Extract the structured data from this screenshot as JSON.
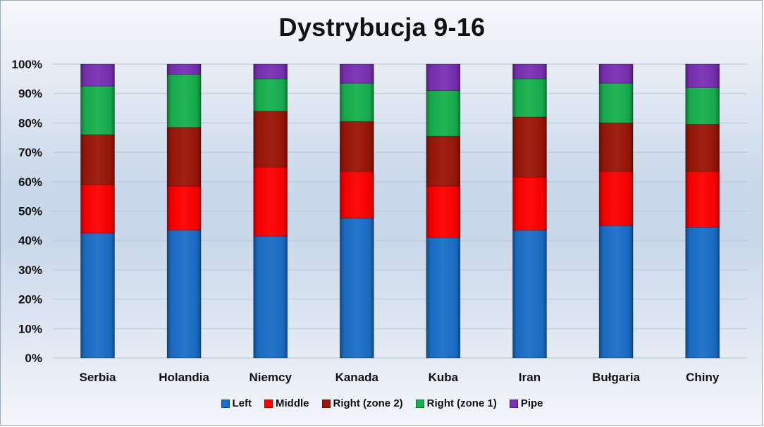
{
  "chart_data": {
    "type": "bar",
    "stacked": true,
    "percent": true,
    "title": "Dystrybucja 9-16",
    "categories": [
      "Serbia",
      "Holandia",
      "Niemcy",
      "Kanada",
      "Kuba",
      "Iran",
      "Bułgaria",
      "Chiny"
    ],
    "series": [
      {
        "name": "Left",
        "color": "#1a6fc9",
        "values": [
          42.5,
          43.5,
          41.5,
          47.5,
          41.0,
          43.5,
          45.0,
          44.5
        ]
      },
      {
        "name": "Middle",
        "color": "#ff0000",
        "values": [
          16.5,
          15.0,
          23.5,
          16.0,
          17.5,
          18.0,
          18.5,
          19.0
        ]
      },
      {
        "name": "Right (zone 2)",
        "color": "#9b1608",
        "values": [
          17.0,
          20.0,
          19.0,
          17.0,
          17.0,
          20.5,
          16.5,
          16.0
        ]
      },
      {
        "name": "Right (zone 1)",
        "color": "#17b14f",
        "values": [
          16.5,
          18.0,
          11.0,
          13.0,
          15.5,
          13.0,
          13.5,
          12.5
        ]
      },
      {
        "name": "Pipe",
        "color": "#7a30b5",
        "values": [
          7.5,
          3.5,
          5.0,
          6.5,
          9.0,
          5.0,
          6.5,
          8.0
        ]
      }
    ],
    "ylim": [
      0,
      100
    ],
    "yticks": [
      "0%",
      "10%",
      "20%",
      "30%",
      "40%",
      "50%",
      "60%",
      "70%",
      "80%",
      "90%",
      "100%"
    ],
    "xlabel": "",
    "ylabel": "",
    "grid": true,
    "legend_position": "bottom"
  }
}
